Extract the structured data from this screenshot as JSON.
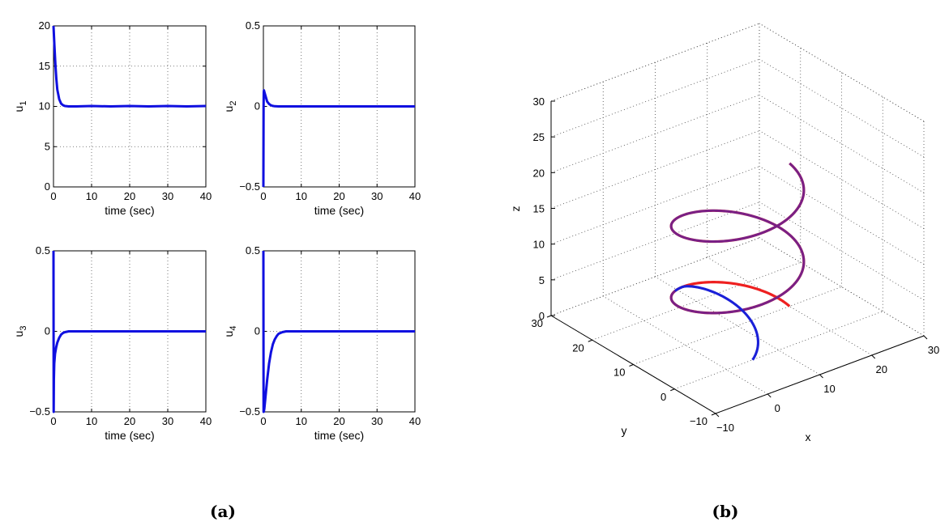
{
  "chart_data": [
    {
      "id": "u1",
      "type": "line",
      "xlabel": "time (sec)",
      "ylabel": "u",
      "ylabel_sub": "1",
      "xlim": [
        0,
        40
      ],
      "ylim": [
        0,
        20
      ],
      "xticks": [
        "0",
        "10",
        "20",
        "30",
        "40"
      ],
      "yticks": [
        "0",
        "5",
        "10",
        "15",
        "20"
      ],
      "grid": true,
      "series": [
        {
          "color": "#1010e0",
          "x": [
            0,
            0.25,
            0.5,
            0.75,
            1,
            1.5,
            2,
            2.5,
            3,
            4,
            5,
            6,
            10,
            15,
            20,
            25,
            30,
            35,
            40
          ],
          "y": [
            20,
            17.5,
            15.2,
            13.4,
            12.1,
            10.9,
            10.35,
            10.15,
            10.05,
            10.0,
            10.0,
            10.0,
            10.05,
            10.0,
            10.05,
            10.0,
            10.05,
            10.0,
            10.05
          ]
        }
      ]
    },
    {
      "id": "u2",
      "type": "line",
      "xlabel": "time (sec)",
      "ylabel": "u",
      "ylabel_sub": "2",
      "xlim": [
        0,
        40
      ],
      "ylim": [
        -0.5,
        0.5
      ],
      "xticks": [
        "0",
        "10",
        "20",
        "30",
        "40"
      ],
      "yticks": [
        "−0.5",
        "0",
        "0.5"
      ],
      "grid": true,
      "series": [
        {
          "color": "#1010e0",
          "x": [
            0,
            0.05,
            0.1,
            0.15,
            0.25,
            0.5,
            0.75,
            1,
            1.5,
            2,
            2.5,
            3,
            4,
            5,
            10,
            20,
            30,
            40
          ],
          "y": [
            -0.5,
            0.0,
            0.09,
            0.1,
            0.09,
            0.07,
            0.05,
            0.03,
            0.015,
            0.007,
            0.003,
            0.001,
            0,
            0,
            0,
            0,
            0,
            0
          ]
        }
      ]
    },
    {
      "id": "u3",
      "type": "line",
      "xlabel": "time (sec)",
      "ylabel": "u",
      "ylabel_sub": "3",
      "xlim": [
        0,
        40
      ],
      "ylim": [
        -0.5,
        0.5
      ],
      "xticks": [
        "0",
        "10",
        "20",
        "30",
        "40"
      ],
      "yticks": [
        "−0.5",
        "0",
        "0.5"
      ],
      "grid": true,
      "series": [
        {
          "color": "#1010e0",
          "x": [
            0,
            0.05,
            0.1,
            0.2,
            0.4,
            0.7,
            1,
            1.5,
            2,
            2.5,
            3,
            4,
            5,
            10,
            20,
            30,
            40
          ],
          "y": [
            0.5,
            -0.5,
            -0.3,
            -0.2,
            -0.14,
            -0.1,
            -0.07,
            -0.04,
            -0.02,
            -0.01,
            -0.005,
            0,
            0,
            0,
            0,
            0,
            0
          ]
        }
      ]
    },
    {
      "id": "u4",
      "type": "line",
      "xlabel": "time (sec)",
      "ylabel": "u",
      "ylabel_sub": "4",
      "xlim": [
        0,
        40
      ],
      "ylim": [
        -0.5,
        0.5
      ],
      "xticks": [
        "0",
        "10",
        "20",
        "30",
        "40"
      ],
      "yticks": [
        "−0.5",
        "0",
        "0.5"
      ],
      "grid": true,
      "series": [
        {
          "color": "#1010e0",
          "x": [
            0,
            0.05,
            0.1,
            0.25,
            0.5,
            1,
            1.5,
            2,
            2.5,
            3,
            3.5,
            4,
            5,
            6,
            10,
            20,
            30,
            40
          ],
          "y": [
            0.5,
            -0.5,
            -0.5,
            -0.48,
            -0.42,
            -0.3,
            -0.2,
            -0.13,
            -0.08,
            -0.05,
            -0.03,
            -0.015,
            -0.005,
            0,
            0,
            0,
            0,
            0
          ]
        }
      ]
    },
    {
      "id": "helix3d",
      "type": "line",
      "projection": "3d",
      "xlabel": "x",
      "ylabel": "y",
      "zlabel": "z",
      "xlim": [
        -10,
        30
      ],
      "ylim": [
        -10,
        30
      ],
      "zlim": [
        0,
        30
      ],
      "xticks": [
        "−10",
        "0",
        "10",
        "20",
        "30"
      ],
      "yticks": [
        "−10",
        "0",
        "10",
        "20",
        "30"
      ],
      "zticks": [
        "0",
        "5",
        "10",
        "15",
        "20",
        "25",
        "30"
      ],
      "grid": true,
      "series": [
        {
          "color": "#ee2020",
          "type": "reference-helix",
          "center": [
            10,
            10
          ],
          "radius": 10,
          "z_range": [
            0,
            20
          ],
          "turns": 2
        },
        {
          "color": "#1a20d8",
          "type": "actual-trajectory",
          "start": [
            5,
            0,
            0
          ],
          "joins_reference_at_z": 3
        }
      ]
    }
  ],
  "captions": {
    "a": "(a)",
    "b": "(b)"
  }
}
